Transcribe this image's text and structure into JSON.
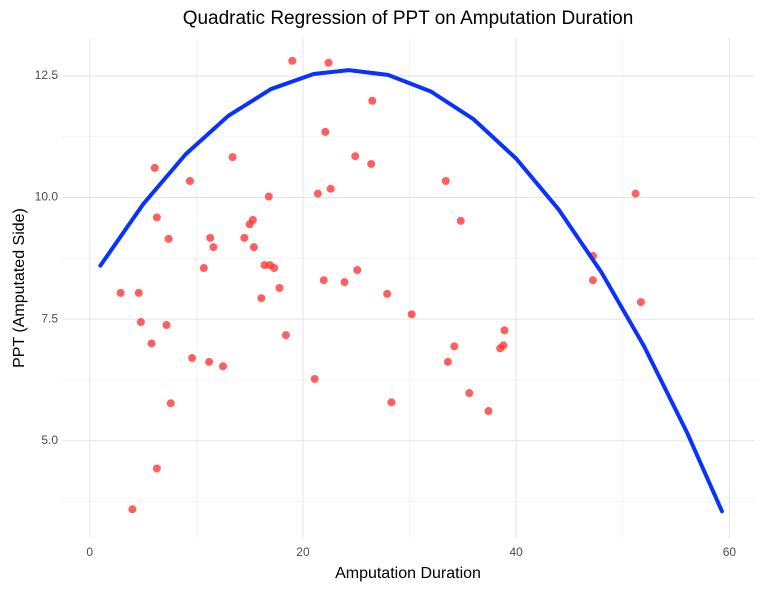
{
  "chart_data": {
    "type": "scatter",
    "title": "Quadratic Regression of PPT on Amputation Duration",
    "x_label": "Amputation Duration",
    "y_label": "PPT (Amputated Side)",
    "xlim": [
      -2.6,
      62.4
    ],
    "ylim": [
      3.0,
      13.28
    ],
    "xticks": [
      0,
      20,
      40,
      60
    ],
    "yticks": [
      {
        "value": 5,
        "label": "5.0"
      },
      7.5,
      {
        "value": 10,
        "label": "10.0"
      },
      12.5
    ],
    "x_minor_ticks": [
      10,
      30,
      50
    ],
    "y_minor_ticks": [
      3.75,
      6.25,
      8.75,
      11.25
    ],
    "grid": true,
    "series": [
      {
        "type": "scatter",
        "color": "#ff2a2a",
        "x": [
          19.0,
          22.4,
          26.5,
          22.1,
          13.4,
          24.9,
          26.4,
          6.1,
          9.4,
          33.4,
          51.2,
          21.4,
          22.6,
          16.8,
          6.3,
          34.8,
          15.3,
          15.0,
          7.4,
          11.3,
          14.5,
          11.6,
          15.4,
          47.2,
          16.4,
          16.9,
          17.3,
          10.7,
          25.1,
          21.95,
          23.9,
          47.2,
          17.8,
          2.9,
          4.6,
          27.9,
          16.1,
          51.7,
          30.2,
          4.8,
          7.2,
          38.9,
          18.4,
          5.8,
          34.2,
          38.8,
          38.5,
          9.6,
          11.2,
          12.5,
          33.6,
          21.1,
          35.6,
          28.3,
          7.6,
          37.4,
          6.3,
          4.0
        ],
        "values": [
          12.81,
          12.77,
          11.99,
          11.35,
          10.83,
          10.85,
          10.69,
          10.61,
          10.34,
          10.34,
          10.08,
          10.08,
          10.18,
          10.02,
          9.59,
          9.52,
          9.54,
          9.45,
          9.15,
          9.17,
          9.17,
          8.98,
          8.98,
          8.8,
          8.61,
          8.61,
          8.55,
          8.55,
          8.51,
          8.3,
          8.26,
          8.3,
          8.14,
          8.04,
          8.04,
          8.02,
          7.93,
          7.85,
          7.6,
          7.44,
          7.38,
          7.27,
          7.17,
          7.0,
          6.94,
          6.96,
          6.9,
          6.7,
          6.62,
          6.53,
          6.62,
          6.27,
          5.98,
          5.79,
          5.77,
          5.61,
          4.43,
          3.59
        ]
      },
      {
        "type": "line",
        "color": "#0a32ff",
        "x": [
          1,
          5,
          9,
          13,
          17,
          21,
          24.3,
          28,
          32,
          36,
          40,
          44,
          48,
          52,
          56,
          59.3
        ],
        "values": [
          8.6,
          9.86,
          10.89,
          11.68,
          12.23,
          12.54,
          12.62,
          12.52,
          12.18,
          11.61,
          10.8,
          9.75,
          8.46,
          6.94,
          5.18,
          3.55
        ]
      }
    ]
  }
}
